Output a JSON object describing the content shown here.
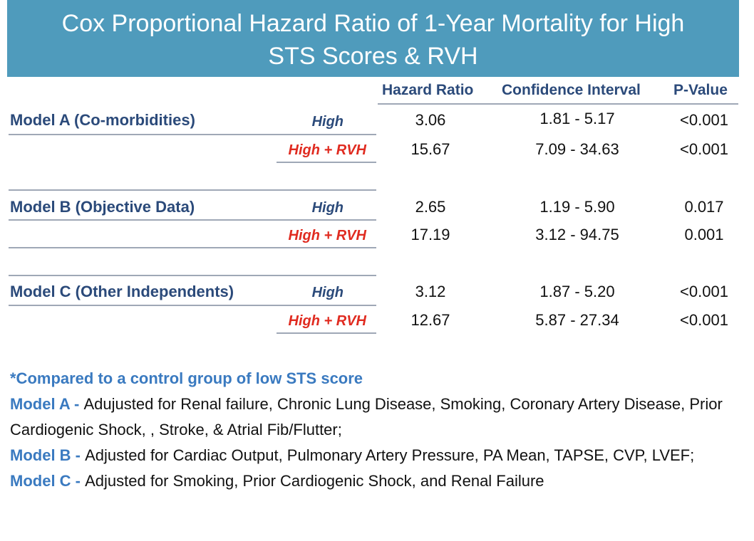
{
  "title_line1": "Cox Proportional Hazard Ratio of 1-Year Mortality for High",
  "title_line2": "STS Scores  & RVH",
  "headers": {
    "hr": "Hazard Ratio",
    "ci": "Confidence Interval",
    "p": "P-Value"
  },
  "models": [
    {
      "name": "Model A (Co-morbidities)",
      "rows": [
        {
          "level": "High",
          "hr": "3.06",
          "ci": "1.81 - 5.17",
          "p": "<0.001"
        },
        {
          "level": "High + RVH",
          "hr": "15.67",
          "ci": "7.09 - 34.63",
          "p": "<0.001"
        }
      ]
    },
    {
      "name": "Model B (Objective Data)",
      "rows": [
        {
          "level": "High",
          "hr": "2.65",
          "ci": "1.19 - 5.90",
          "p": "0.017"
        },
        {
          "level": "High + RVH",
          "hr": "17.19",
          "ci": "3.12 - 94.75",
          "p": "0.001"
        }
      ]
    },
    {
      "name": "Model C (Other Independents)",
      "rows": [
        {
          "level": "High",
          "hr": "3.12",
          "ci": "1.87 - 5.20",
          "p": "<0.001"
        },
        {
          "level": "High + RVH",
          "hr": "12.67",
          "ci": "5.87 - 27.34",
          "p": "<0.001"
        }
      ]
    }
  ],
  "notes": {
    "compared": "*Compared to a control group of low STS score",
    "a_label": "Model A - ",
    "a_text": "Adujusted for Renal failure, Chronic Lung Disease, Smoking, Coronary Artery Disease, Prior Cardiogenic Shock, , Stroke, & Atrial Fib/Flutter;",
    "b_label": "Model B - ",
    "b_text": "Adjusted for Cardiac Output, Pulmonary Artery Pressure, PA Mean, TAPSE, CVP, LVEF;",
    "c_label": "Model C - ",
    "c_text": "Adjusted for Smoking, Prior Cardiogenic Shock, and Renal Failure"
  }
}
